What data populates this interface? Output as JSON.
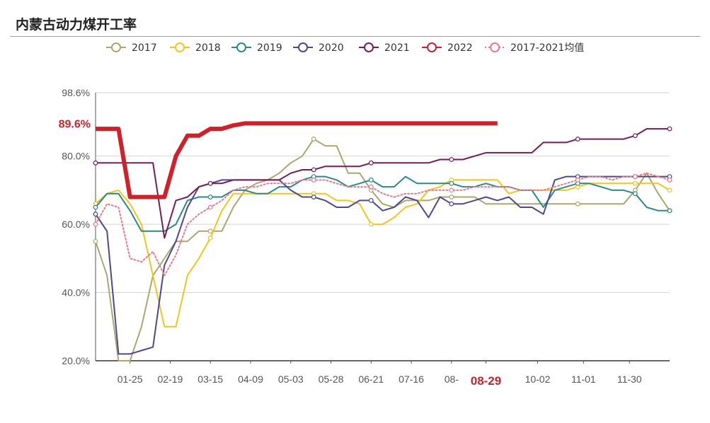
{
  "page_title": "内蒙古动力煤开工率",
  "chart_data": {
    "type": "line",
    "title": "内蒙古动力煤开工率",
    "ylim": [
      20.0,
      98.6
    ],
    "y_ticks": [
      "98.6%",
      "80.0%",
      "60.0%",
      "40.0%",
      "20.0%"
    ],
    "y_tick_values": [
      98.6,
      80.0,
      60.0,
      40.0,
      20.0
    ],
    "x_ticks": [
      "01-25",
      "02-19",
      "03-15",
      "04-09",
      "05-03",
      "05-28",
      "06-21",
      "07-16",
      "08-",
      "08-29",
      "10-02",
      "11-01",
      "11-30"
    ],
    "x_tick_weeks": [
      3,
      6.5,
      10,
      13.5,
      17,
      20.5,
      24,
      27.5,
      31,
      34,
      38.5,
      42.5,
      46.5
    ],
    "highlight_x": "08-29",
    "highlight_y": "89.6%",
    "legend": [
      "2017",
      "2018",
      "2019",
      "2020",
      "2021",
      "2022",
      "2017-2021均值"
    ],
    "grid": "horizontal",
    "legend_position": "top",
    "series": [
      {
        "name": "2017",
        "color": "#aaa86e",
        "x": [
          0,
          1,
          2,
          3,
          4,
          5,
          6,
          7,
          8,
          9,
          10,
          11,
          12,
          13,
          14,
          15,
          16,
          17,
          18,
          19,
          20,
          21,
          22,
          23,
          24,
          25,
          26,
          27,
          28,
          29,
          30,
          31,
          32,
          33,
          34,
          35,
          36,
          37,
          38,
          39,
          40,
          41,
          42,
          43,
          44,
          45,
          46,
          47,
          48,
          49,
          50
        ],
        "values": [
          55,
          45,
          20,
          20,
          30,
          45,
          50,
          55,
          55,
          58,
          58,
          58,
          65,
          70,
          72,
          73,
          75,
          78,
          80,
          85,
          83,
          83,
          75,
          75,
          70,
          66,
          65,
          67,
          67,
          67,
          68,
          68,
          68,
          68,
          66,
          66,
          66,
          66,
          66,
          66,
          66,
          66,
          66,
          66,
          66,
          66,
          66,
          70,
          75,
          69,
          64
        ]
      },
      {
        "name": "2018",
        "color": "#f5c518",
        "x": [
          0,
          1,
          2,
          3,
          4,
          5,
          6,
          7,
          8,
          9,
          10,
          11,
          12,
          13,
          14,
          15,
          16,
          17,
          18,
          19,
          20,
          21,
          22,
          23,
          24,
          25,
          26,
          27,
          28,
          29,
          30,
          31,
          32,
          33,
          34,
          35,
          36,
          37,
          38,
          39,
          40,
          41,
          42,
          43,
          44,
          45,
          46,
          47,
          48,
          49,
          50
        ],
        "values": [
          66,
          69,
          70,
          66,
          60,
          45,
          30,
          30,
          45,
          50,
          56,
          64,
          69,
          69,
          69,
          69,
          69,
          69,
          69,
          69,
          69,
          67,
          67,
          66,
          60,
          60,
          62,
          65,
          66,
          70,
          71,
          73,
          73,
          73,
          73,
          73,
          69,
          70,
          70,
          70,
          70,
          70,
          71,
          72,
          72,
          72,
          72,
          72,
          72,
          72,
          70
        ]
      },
      {
        "name": "2019",
        "color": "#2a8a8a",
        "x": [
          0,
          1,
          2,
          3,
          4,
          5,
          6,
          7,
          8,
          9,
          10,
          11,
          12,
          13,
          14,
          15,
          16,
          17,
          18,
          19,
          20,
          21,
          22,
          23,
          24,
          25,
          26,
          27,
          28,
          29,
          30,
          31,
          32,
          33,
          34,
          35,
          36,
          37,
          38,
          39,
          40,
          41,
          42,
          43,
          44,
          45,
          46,
          47,
          48,
          49,
          50
        ],
        "values": [
          65,
          69,
          69,
          64,
          58,
          58,
          58,
          60,
          67,
          68,
          68,
          68,
          70,
          70,
          69,
          69,
          71,
          71,
          73,
          74,
          74,
          73,
          71,
          72,
          73,
          71,
          71,
          74,
          72,
          72,
          72,
          72,
          71,
          71,
          72,
          71,
          71,
          70,
          70,
          65,
          70,
          71,
          72,
          72,
          71,
          70,
          70,
          69,
          65,
          64,
          64
        ]
      },
      {
        "name": "2020",
        "color": "#4c4894",
        "x": [
          0,
          1,
          2,
          3,
          4,
          5,
          6,
          7,
          8,
          9,
          10,
          11,
          12,
          13,
          14,
          15,
          16,
          17,
          18,
          19,
          20,
          21,
          22,
          23,
          24,
          25,
          26,
          27,
          28,
          29,
          30,
          31,
          32,
          33,
          34,
          35,
          36,
          37,
          38,
          39,
          40,
          41,
          42,
          43,
          44,
          45,
          46,
          47,
          48,
          49,
          50
        ],
        "values": [
          63,
          58,
          22,
          22,
          23,
          24,
          48,
          55,
          65,
          71,
          72,
          73,
          73,
          73,
          73,
          73,
          73,
          70,
          68,
          68,
          67,
          65,
          65,
          67,
          67,
          64,
          65,
          68,
          67,
          62,
          68,
          66,
          66,
          67,
          68,
          67,
          68,
          65,
          65,
          63,
          73,
          74,
          74,
          74,
          74,
          74,
          74,
          74,
          74,
          74,
          74
        ]
      },
      {
        "name": "2021",
        "color": "#7a1a5a",
        "x": [
          0,
          1,
          2,
          3,
          4,
          5,
          6,
          7,
          8,
          9,
          10,
          11,
          12,
          13,
          14,
          15,
          16,
          17,
          18,
          19,
          20,
          21,
          22,
          23,
          24,
          25,
          26,
          27,
          28,
          29,
          30,
          31,
          32,
          33,
          34,
          35,
          36,
          37,
          38,
          39,
          40,
          41,
          42,
          43,
          44,
          45,
          46,
          47,
          48,
          49,
          50
        ],
        "values": [
          78,
          78,
          78,
          78,
          78,
          78,
          56,
          67,
          68,
          71,
          72,
          72,
          73,
          73,
          73,
          73,
          73,
          75,
          76,
          76,
          77,
          77,
          77,
          77,
          78,
          78,
          78,
          78,
          78,
          78,
          79,
          79,
          79,
          80,
          81,
          81,
          81,
          81,
          81,
          84,
          84,
          84,
          85,
          85,
          85,
          85,
          85,
          86,
          88,
          88,
          88
        ]
      },
      {
        "name": "2022",
        "color": "#d0202a",
        "x": [
          0,
          1,
          2,
          3,
          4,
          5,
          6,
          7,
          8,
          9,
          10,
          11,
          12,
          13,
          14,
          15,
          16,
          17,
          18,
          19,
          20,
          21,
          22,
          23,
          24,
          25,
          26,
          27,
          28,
          29,
          30,
          31,
          32,
          33,
          34,
          35
        ],
        "values": [
          88,
          88,
          88,
          68,
          68,
          68,
          68,
          80,
          86,
          86,
          88,
          88,
          89,
          89.6,
          89.6,
          89.6,
          89.6,
          89.6,
          89.6,
          89.6,
          89.6,
          89.6,
          89.6,
          89.6,
          89.6,
          89.6,
          89.6,
          89.6,
          89.6,
          89.6,
          89.6,
          89.6,
          89.6,
          89.6,
          89.6,
          89.6
        ]
      },
      {
        "name": "2017-2021均值",
        "color": "#f07888",
        "dashed": true,
        "x": [
          0,
          1,
          2,
          3,
          4,
          5,
          6,
          7,
          8,
          9,
          10,
          11,
          12,
          13,
          14,
          15,
          16,
          17,
          18,
          19,
          20,
          21,
          22,
          23,
          24,
          25,
          26,
          27,
          28,
          29,
          30,
          31,
          32,
          33,
          34,
          35,
          36,
          37,
          38,
          39,
          40,
          41,
          42,
          43,
          44,
          45,
          46,
          47,
          48,
          49,
          50
        ],
        "values": [
          60,
          66,
          65,
          50,
          49,
          52,
          45,
          51,
          60,
          63,
          65,
          67,
          70,
          71,
          71,
          72,
          72,
          72,
          73,
          73,
          73,
          72,
          71,
          71,
          71,
          69,
          68,
          69,
          69,
          70,
          70,
          70,
          70,
          71,
          71,
          71,
          71,
          70,
          70,
          70,
          71,
          72,
          73,
          74,
          74,
          73,
          74,
          74,
          75,
          74,
          73
        ]
      }
    ]
  }
}
